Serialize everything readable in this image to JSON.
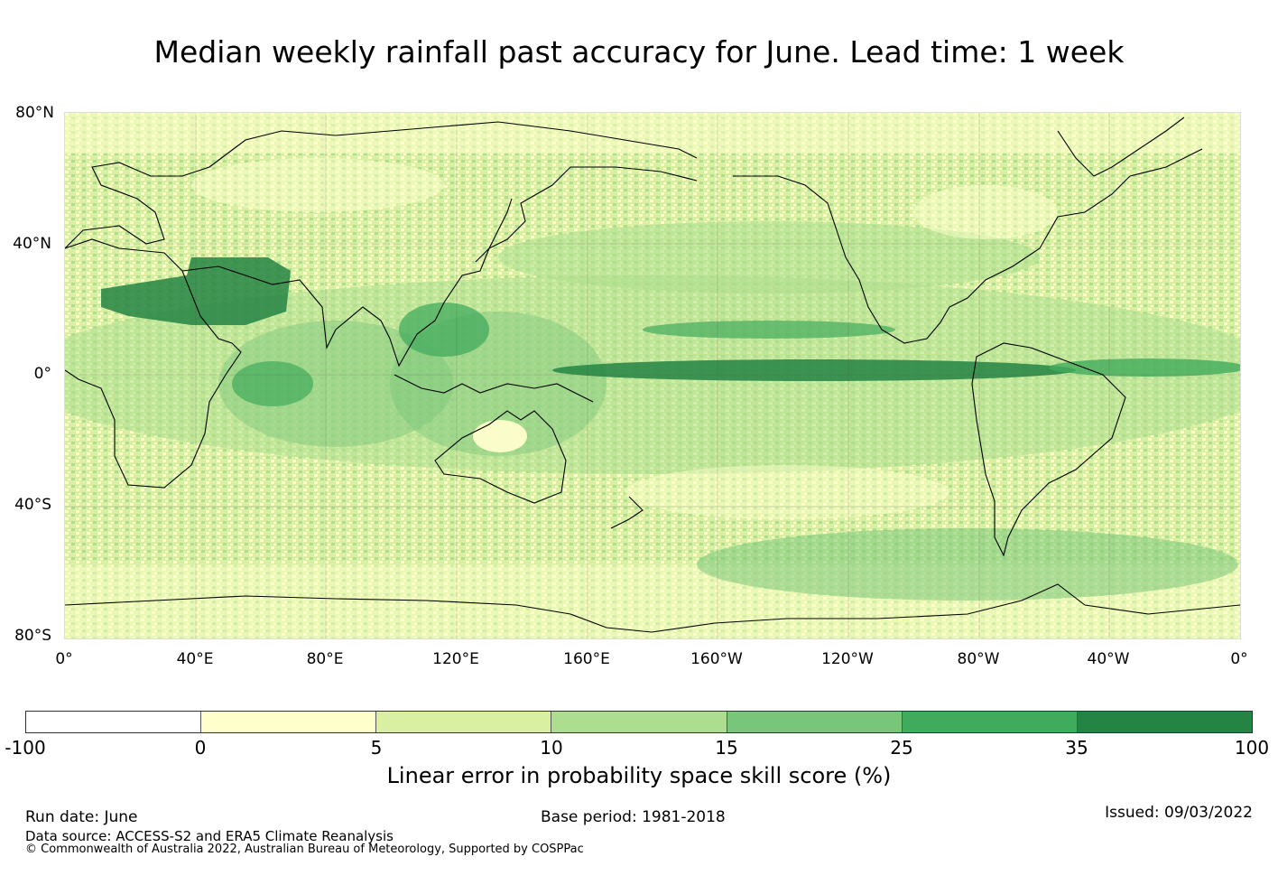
{
  "title": "Median weekly rainfall past accuracy for June. Lead time: 1 week",
  "map": {
    "lat_labels": [
      "80°N",
      "40°N",
      "0°",
      "40°S",
      "80°S"
    ],
    "lon_labels": [
      "0°",
      "40°E",
      "80°E",
      "120°E",
      "160°E",
      "160°W",
      "120°W",
      "80°W",
      "40°W",
      "0°"
    ]
  },
  "colorbar": {
    "ticks": [
      "-100",
      "0",
      "5",
      "10",
      "15",
      "25",
      "35",
      "100"
    ],
    "colors": [
      "#ffffff",
      "#ffffcc",
      "#d9f0a3",
      "#addd8e",
      "#78c679",
      "#41ab5d",
      "#238443"
    ],
    "label": "Linear error in probability space skill score (%)"
  },
  "footer": {
    "run_date": "Run date: June",
    "base_period": "Base period: 1981-2018",
    "issued": "Issued: 09/03/2022",
    "data_source": "Data source: ACCESS-S2 and ERA5 Climate Reanalysis",
    "copyright": "© Commonwealth of Australia 2022, Australian Bureau of Meteorology, Supported by COSPPac"
  }
}
